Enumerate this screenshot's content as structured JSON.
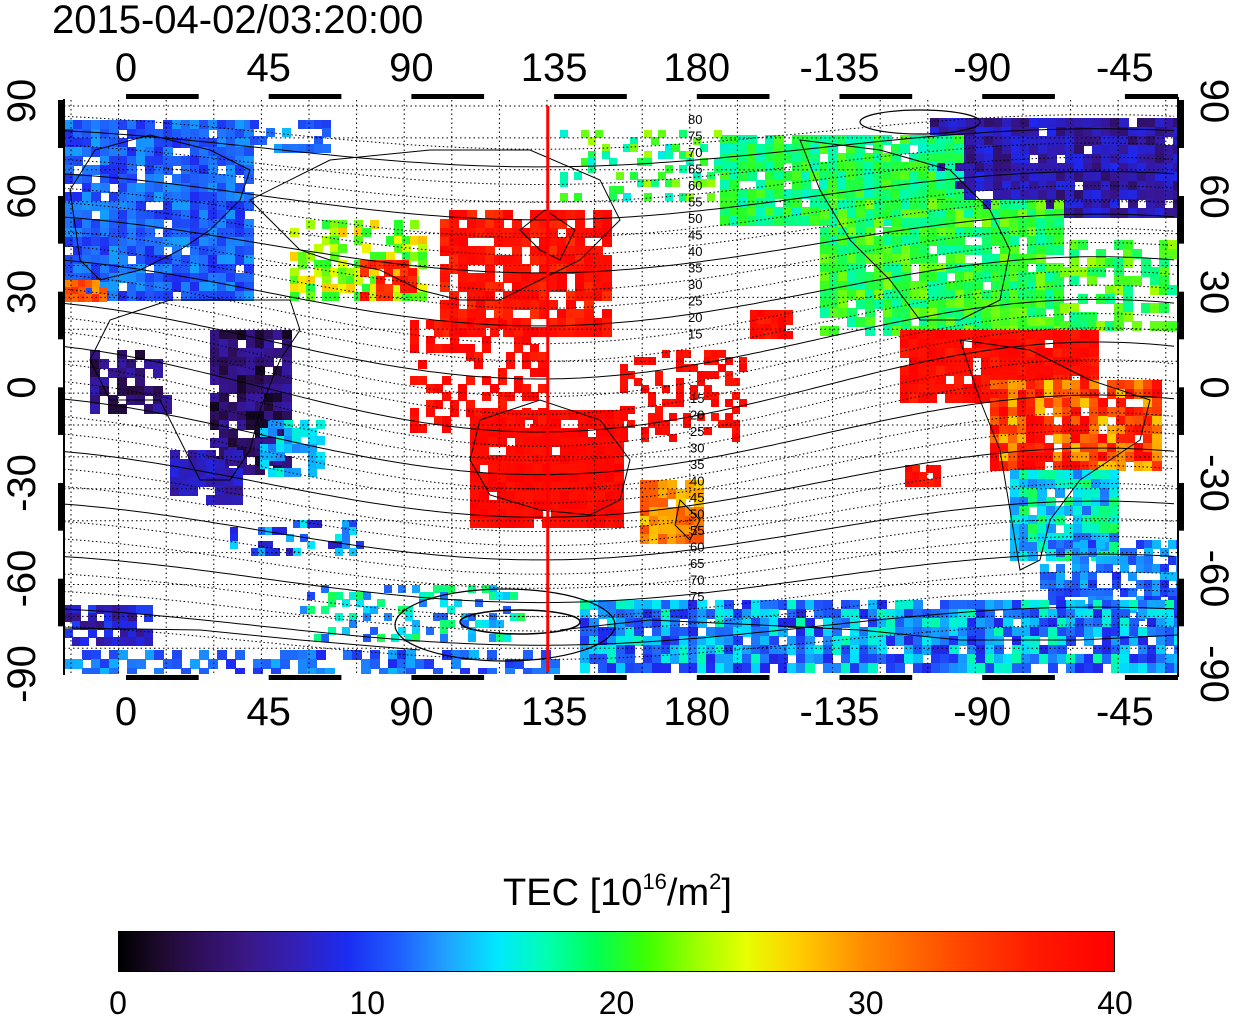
{
  "title": "2015-04-02/03:20:00",
  "map": {
    "type": "TEC global map",
    "lon_ticks_top": [
      "0",
      "45",
      "90",
      "135",
      "180",
      "-135",
      "-90",
      "-45"
    ],
    "lon_ticks_bottom": [
      "0",
      "45",
      "90",
      "135",
      "180",
      "-135",
      "-90",
      "-45"
    ],
    "lat_ticks_left": [
      "90",
      "60",
      "30",
      "0",
      "-30",
      "-60",
      "-90"
    ],
    "lat_ticks_right": [
      "90",
      "60",
      "30",
      "0",
      "-30",
      "-60",
      "-90"
    ],
    "meridian_marker_lon": 133,
    "meridian_marker_color": "#ff0000",
    "contour_labels_north": [
      "80",
      "75",
      "70",
      "65",
      "60",
      "55",
      "50",
      "45",
      "40",
      "35",
      "30",
      "25",
      "20",
      "15"
    ],
    "contour_labels_south": [
      "15",
      "20",
      "25",
      "30",
      "35",
      "40",
      "45",
      "50",
      "55",
      "60",
      "65",
      "70",
      "75"
    ]
  },
  "colorbar": {
    "title_main": "TEC  [10",
    "title_sup1": "16",
    "title_mid": "/m",
    "title_sup2": "2",
    "title_end": "]",
    "tick_labels": [
      "0",
      "10",
      "20",
      "30",
      "40"
    ],
    "range": [
      0,
      40
    ]
  }
}
